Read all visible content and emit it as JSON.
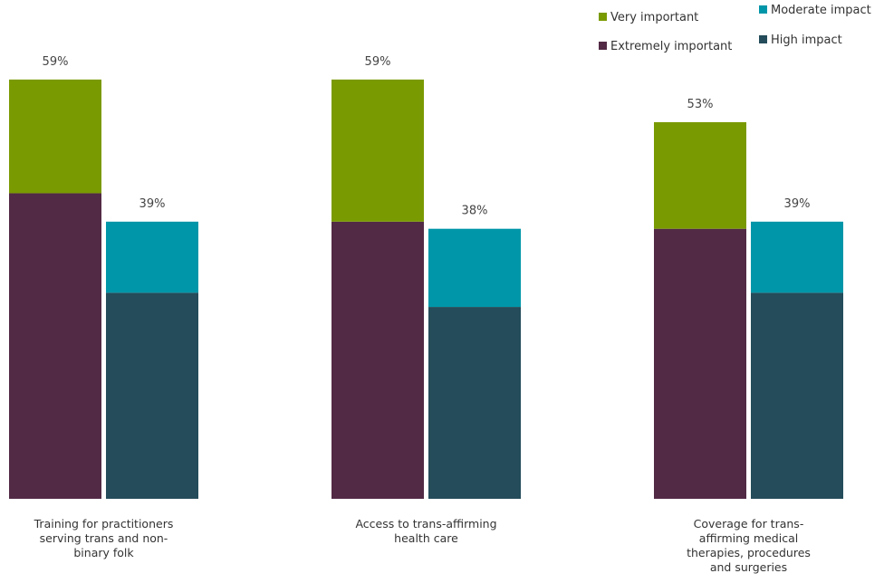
{
  "chart_data": {
    "type": "bar",
    "stacked_pairs": true,
    "legend_position": "top-right",
    "grid": false,
    "ylim": [
      0,
      100
    ],
    "categories": [
      [
        "Training for practitioners",
        "serving trans and non-",
        "binary folk"
      ],
      [
        "Access to trans-affirming",
        "health care"
      ],
      [
        "Coverage for trans-",
        "affirming medical",
        "therapies, procedures",
        "and surgeries"
      ]
    ],
    "groups": [
      {
        "name": "importance",
        "total_labels": [
          "59%",
          "59%",
          "53%"
        ],
        "series": [
          {
            "name": "Extremely important",
            "color": "#522a45",
            "values": [
              43,
              39,
              38
            ]
          },
          {
            "name": "Very important",
            "color": "#7a9a01",
            "values": [
              16,
              20,
              15
            ]
          }
        ]
      },
      {
        "name": "impact",
        "total_labels": [
          "39%",
          "38%",
          "39%"
        ],
        "series": [
          {
            "name": "High impact",
            "color": "#244c5a",
            "values": [
              29,
              27,
              29
            ]
          },
          {
            "name": "Moderate impact",
            "color": "#0096a9",
            "values": [
              10,
              11,
              10
            ]
          }
        ]
      }
    ],
    "legend": [
      {
        "label": "Very important",
        "color": "#7a9a01"
      },
      {
        "label": "Extremely important",
        "color": "#522a45"
      },
      {
        "label": "Moderate impact",
        "color": "#0096a9"
      },
      {
        "label": "High impact",
        "color": "#244c5a"
      }
    ]
  }
}
